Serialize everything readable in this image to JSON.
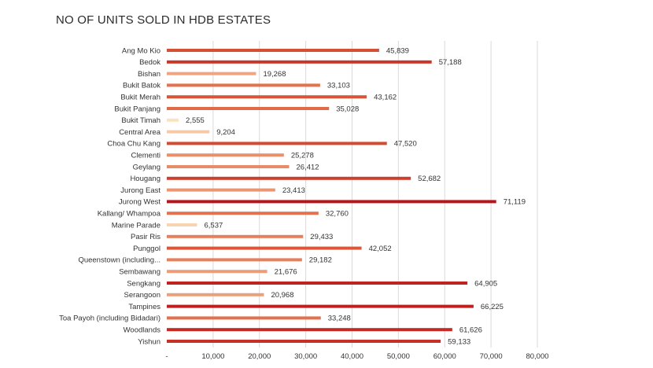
{
  "chart_data": {
    "type": "bar",
    "orientation": "horizontal",
    "title": "NO OF UNITS SOLD IN HDB ESTATES",
    "xlabel": "",
    "ylabel": "",
    "xlim": [
      0,
      80000
    ],
    "x_ticks": [
      0,
      10000,
      20000,
      30000,
      40000,
      50000,
      60000,
      70000,
      80000
    ],
    "x_tick_labels": [
      "-",
      "10,000",
      "20,000",
      "30,000",
      "40,000",
      "50,000",
      "60,000",
      "70,000",
      "80,000"
    ],
    "grid": "vertical",
    "legend": "none",
    "colors": {
      "min": "#fbe3c2",
      "mid": "#e0643f",
      "max": "#b8151a",
      "grid": "#d9d9d9",
      "text": "#333333"
    },
    "categories": [
      "Ang Mo Kio",
      "Bedok",
      "Bishan",
      "Bukit Batok",
      "Bukit Merah",
      "Bukit Panjang",
      "Bukit Timah",
      "Central Area",
      "Choa Chu Kang",
      "Clementi",
      "Geylang",
      "Hougang",
      "Jurong East",
      "Jurong West",
      "Kallang/ Whampoa",
      "Marine Parade",
      "Pasir Ris",
      "Punggol",
      "Queenstown (including...",
      "Sembawang",
      "Sengkang",
      "Serangoon",
      "Tampines",
      "Toa Payoh (including Bidadari)",
      "Woodlands",
      "Yishun"
    ],
    "values": [
      45839,
      57188,
      19268,
      33103,
      43162,
      35028,
      2555,
      9204,
      47520,
      25278,
      26412,
      52682,
      23413,
      71119,
      32760,
      6537,
      29433,
      42052,
      29182,
      21676,
      64905,
      20968,
      66225,
      33248,
      61626,
      59133
    ],
    "value_labels": [
      "45,839",
      "57,188",
      "19,268",
      "33,103",
      "43,162",
      "35,028",
      "2,555",
      "9,204",
      "47,520",
      "25,278",
      "26,412",
      "52,682",
      "23,413",
      "71,119",
      "32,760",
      "6,537",
      "29,433",
      "42,052",
      "29,182",
      "21,676",
      "64,905",
      "20,968",
      "66,225",
      "33,248",
      "61,626",
      "59,133"
    ]
  }
}
